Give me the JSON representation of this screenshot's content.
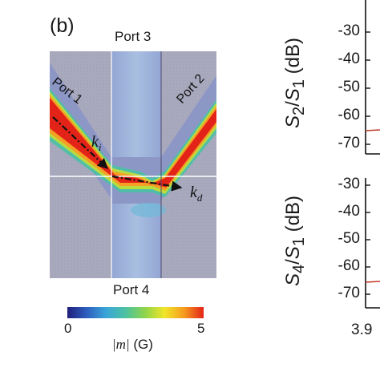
{
  "panel_label": "(b)",
  "ports": {
    "port1": "Port 1",
    "port2": "Port 2",
    "port3": "Port 3",
    "port4": "Port 4"
  },
  "wavevectors": {
    "incident": "k",
    "incident_sub": "i",
    "deflected": "k",
    "deflected_sub": "d"
  },
  "colorbar": {
    "min_label": "0",
    "max_label": "5",
    "title_var": "|m|",
    "title_unit": "(G)",
    "colors": [
      "#20207a",
      "#2d5fbf",
      "#3aa6d9",
      "#4cc2a0",
      "#8fd44a",
      "#f2e62a",
      "#f59a1e",
      "#e42318"
    ]
  },
  "right_panel": {
    "top_ylabel": {
      "num": "S",
      "num_sub": "2",
      "den": "S",
      "den_sub": "1",
      "unit": "(dB)"
    },
    "bottom_ylabel": {
      "num": "S",
      "num_sub": "4",
      "den": "S",
      "den_sub": "1",
      "unit": "(dB)"
    },
    "top_yticks": [
      "-30",
      "-40",
      "-50",
      "-60",
      "-70"
    ],
    "bottom_yticks": [
      "-30",
      "-40",
      "-50",
      "-60",
      "-70"
    ],
    "x_first_tick": "3.9"
  },
  "colors": {
    "background_field": "#a8a8c0",
    "waveguide": "#8f9bc8",
    "center_strip": "#9fb0d6",
    "hot": "#e42318",
    "trace": "#c0392b"
  }
}
